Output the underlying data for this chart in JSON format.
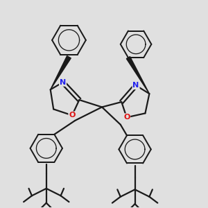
{
  "background_color": "#e0e0e0",
  "bond_color": "#1a1a1a",
  "N_color": "#2222ee",
  "O_color": "#dd1111",
  "bond_width": 1.6,
  "figsize": [
    3.0,
    3.0
  ],
  "dpi": 100,
  "xlim": [
    0,
    10
  ],
  "ylim": [
    0,
    10
  ]
}
